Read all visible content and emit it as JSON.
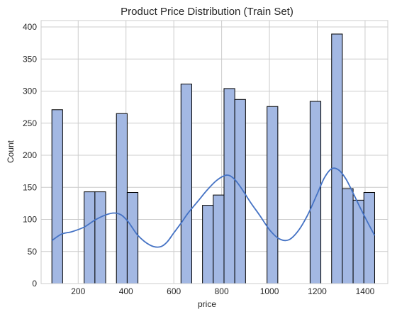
{
  "chart_data": {
    "type": "bar",
    "subtype": "histogram-with-kde",
    "title": "Product Price Distribution (Train Set)",
    "xlabel": "price",
    "ylabel": "Count",
    "xlim": [
      45,
      1495
    ],
    "ylim": [
      0,
      410
    ],
    "xticks": [
      200,
      400,
      600,
      800,
      1000,
      1200,
      1400
    ],
    "yticks": [
      0,
      50,
      100,
      150,
      200,
      250,
      300,
      350,
      400
    ],
    "grid": true,
    "legend": "none",
    "bar_color": "#a3b8e3",
    "bar_edge_color": "#000000",
    "kde_color": "#4472c4",
    "background": "#ffffff",
    "bins": [
      {
        "x0": 90,
        "x1": 135,
        "count": 271
      },
      {
        "x0": 225,
        "x1": 270,
        "count": 143
      },
      {
        "x0": 270,
        "x1": 315,
        "count": 143
      },
      {
        "x0": 360,
        "x1": 405,
        "count": 265
      },
      {
        "x0": 405,
        "x1": 450,
        "count": 142
      },
      {
        "x0": 630,
        "x1": 675,
        "count": 311
      },
      {
        "x0": 720,
        "x1": 765,
        "count": 122
      },
      {
        "x0": 765,
        "x1": 810,
        "count": 138
      },
      {
        "x0": 810,
        "x1": 855,
        "count": 304
      },
      {
        "x0": 855,
        "x1": 900,
        "count": 287
      },
      {
        "x0": 990,
        "x1": 1035,
        "count": 276
      },
      {
        "x0": 1170,
        "x1": 1215,
        "count": 284
      },
      {
        "x0": 1260,
        "x1": 1305,
        "count": 389
      },
      {
        "x0": 1305,
        "x1": 1350,
        "count": 148
      },
      {
        "x0": 1350,
        "x1": 1395,
        "count": 130
      },
      {
        "x0": 1395,
        "x1": 1440,
        "count": 142
      }
    ],
    "kde": {
      "x": [
        90,
        130,
        175,
        225,
        270,
        315,
        350,
        380,
        410,
        450,
        500,
        540,
        570,
        600,
        630,
        660,
        700,
        740,
        780,
        820,
        850,
        880,
        920,
        960,
        1000,
        1040,
        1080,
        1120,
        1160,
        1200,
        1230,
        1260,
        1290,
        1320,
        1350,
        1380,
        1410,
        1440
      ],
      "y": [
        67,
        77,
        81,
        88,
        99,
        107,
        110,
        107,
        96,
        75,
        60,
        57,
        64,
        79,
        94,
        110,
        128,
        146,
        161,
        169,
        164,
        150,
        127,
        106,
        84,
        70,
        68,
        82,
        107,
        140,
        165,
        179,
        177,
        163,
        141,
        118,
        96,
        75
      ]
    }
  }
}
